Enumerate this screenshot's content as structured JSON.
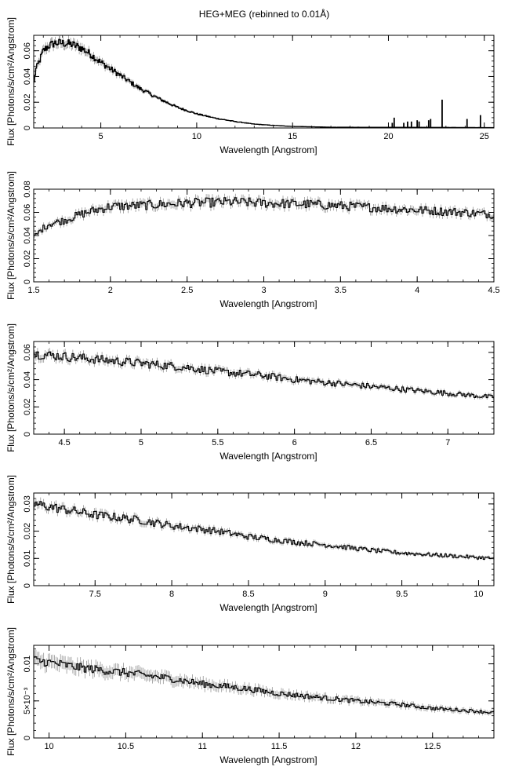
{
  "title": "HEG+MEG (rebinned to 0.01Å)",
  "chart_data": [
    {
      "type": "line",
      "xlabel": "Wavelength [Angstrom]",
      "ylabel": "Flux [Photons/s/cm²/Angstrom]",
      "xlim": [
        1.5,
        25.5
      ],
      "ylim": [
        0,
        0.072
      ],
      "xticks": [
        5,
        10,
        15,
        20,
        25
      ],
      "xtick_labels": [
        "5",
        "10",
        "15",
        "20",
        "25"
      ],
      "yticks": [
        0,
        0.02,
        0.04,
        0.06
      ],
      "ytick_labels": [
        "0",
        "0.02",
        "0.04",
        "0.06"
      ],
      "series": [
        {
          "x": [
            1.5,
            1.6,
            1.8,
            2.0,
            2.3,
            2.6,
            3.0,
            3.5,
            4.0,
            4.5,
            5.0,
            5.5,
            6.0,
            6.5,
            7.0,
            7.5,
            8.0,
            9.0,
            10.0,
            11.0,
            12.0,
            13.0,
            14.0,
            15.0,
            17.0,
            20.0,
            23.0,
            25.5
          ],
          "y": [
            0.032,
            0.045,
            0.052,
            0.06,
            0.064,
            0.066,
            0.066,
            0.065,
            0.062,
            0.057,
            0.051,
            0.046,
            0.041,
            0.036,
            0.031,
            0.027,
            0.023,
            0.016,
            0.011,
            0.0075,
            0.005,
            0.003,
            0.002,
            0.0012,
            0.0006,
            0.0005,
            0.0004,
            0.0003
          ]
        }
      ],
      "lines": [
        {
          "x": 20.2,
          "y": 0.004
        },
        {
          "x": 20.3,
          "y": 0.008
        },
        {
          "x": 20.8,
          "y": 0.004
        },
        {
          "x": 21.0,
          "y": 0.005
        },
        {
          "x": 21.2,
          "y": 0.005
        },
        {
          "x": 21.5,
          "y": 0.006
        },
        {
          "x": 21.6,
          "y": 0.005
        },
        {
          "x": 22.1,
          "y": 0.006
        },
        {
          "x": 22.2,
          "y": 0.007
        },
        {
          "x": 22.8,
          "y": 0.022
        },
        {
          "x": 24.1,
          "y": 0.007
        },
        {
          "x": 24.8,
          "y": 0.01
        }
      ]
    },
    {
      "type": "line",
      "xlabel": "Wavelength [Angstrom]",
      "ylabel": "Flux [Photons/s/cm²/Angstrom]",
      "xlim": [
        1.5,
        4.5
      ],
      "ylim": [
        0,
        0.08
      ],
      "xticks": [
        1.5,
        2,
        2.5,
        3,
        3.5,
        4,
        4.5
      ],
      "xtick_labels": [
        "1.5",
        "2",
        "2.5",
        "3",
        "3.5",
        "4",
        "4.5"
      ],
      "yticks": [
        0,
        0.02,
        0.04,
        0.06,
        0.08
      ],
      "ytick_labels": [
        "0",
        "0.02",
        "0.04",
        "0.06",
        "0.08"
      ],
      "series": [
        {
          "x": [
            1.5,
            1.55,
            1.6,
            1.7,
            1.8,
            1.9,
            2.0,
            2.2,
            2.5,
            2.8,
            3.0,
            3.3,
            3.6,
            4.0,
            4.3,
            4.5
          ],
          "y": [
            0.038,
            0.045,
            0.05,
            0.053,
            0.058,
            0.062,
            0.065,
            0.066,
            0.068,
            0.069,
            0.068,
            0.067,
            0.065,
            0.062,
            0.06,
            0.058
          ]
        }
      ]
    },
    {
      "type": "line",
      "xlabel": "Wavelength [Angstrom]",
      "ylabel": "Flux [Photons/s/cm²/Angstrom]",
      "xlim": [
        4.3,
        7.3
      ],
      "ylim": [
        0,
        0.068
      ],
      "xticks": [
        4.5,
        5,
        5.5,
        6,
        6.5,
        7
      ],
      "xtick_labels": [
        "4.5",
        "5",
        "5.5",
        "6",
        "6.5",
        "7"
      ],
      "yticks": [
        0,
        0.02,
        0.04,
        0.06
      ],
      "ytick_labels": [
        "0",
        "0.02",
        "0.04",
        "0.06"
      ],
      "series": [
        {
          "x": [
            4.3,
            4.5,
            4.8,
            5.0,
            5.3,
            5.5,
            5.8,
            6.0,
            6.3,
            6.5,
            6.8,
            7.0,
            7.3
          ],
          "y": [
            0.059,
            0.057,
            0.054,
            0.052,
            0.049,
            0.046,
            0.043,
            0.04,
            0.037,
            0.035,
            0.032,
            0.03,
            0.027
          ]
        }
      ]
    },
    {
      "type": "line",
      "xlabel": "Wavelength [Angstrom]",
      "ylabel": "Flux [Photons/s/cm²/Angstrom]",
      "xlim": [
        7.1,
        10.1
      ],
      "ylim": [
        0,
        0.034
      ],
      "xticks": [
        7.5,
        8,
        8.5,
        9,
        9.5,
        10
      ],
      "xtick_labels": [
        "7.5",
        "8",
        "8.5",
        "9",
        "9.5",
        "10"
      ],
      "yticks": [
        0,
        0.01,
        0.02,
        0.03
      ],
      "ytick_labels": [
        "0",
        "0.01",
        "0.02",
        "0.03"
      ],
      "series": [
        {
          "x": [
            7.1,
            7.3,
            7.5,
            7.8,
            8.0,
            8.3,
            8.5,
            8.8,
            9.0,
            9.3,
            9.5,
            9.8,
            10.1
          ],
          "y": [
            0.03,
            0.028,
            0.026,
            0.024,
            0.022,
            0.02,
            0.018,
            0.016,
            0.015,
            0.013,
            0.012,
            0.011,
            0.01
          ]
        }
      ]
    },
    {
      "type": "line",
      "xlabel": "Wavelength [Angstrom]",
      "ylabel": "Flux [Photons/s/cm²/Angstrom]",
      "xlim": [
        9.9,
        12.9
      ],
      "ylim": [
        0,
        0.0125
      ],
      "xticks": [
        10,
        10.5,
        11,
        11.5,
        12,
        12.5
      ],
      "xtick_labels": [
        "10",
        "10.5",
        "11",
        "11.5",
        "12",
        "12.5"
      ],
      "yticks": [
        0,
        0.005,
        0.01
      ],
      "ytick_labels": [
        "0",
        "5×10⁻³",
        "0.01"
      ],
      "series": [
        {
          "x": [
            9.9,
            10.0,
            10.2,
            10.5,
            10.8,
            11.0,
            11.3,
            11.5,
            11.8,
            12.0,
            12.3,
            12.5,
            12.8,
            12.9
          ],
          "y": [
            0.0105,
            0.0102,
            0.0095,
            0.0088,
            0.008,
            0.0073,
            0.0066,
            0.006,
            0.0054,
            0.005,
            0.0045,
            0.004,
            0.0036,
            0.0034
          ]
        }
      ]
    }
  ]
}
